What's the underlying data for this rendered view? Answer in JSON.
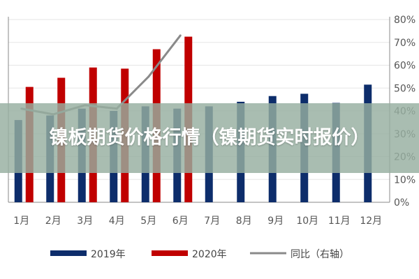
{
  "overlay_title": "镍板期货价格行情（镍期货实时报价）",
  "colors": {
    "series_2019": "#0d2d6b",
    "series_2020": "#c00000",
    "series_yoy": "#8a8a8a",
    "banner": "#96af a0"
  },
  "chart_data": {
    "type": "bar",
    "categories": [
      "1月",
      "2月",
      "3月",
      "4月",
      "5月",
      "6月",
      "7月",
      "8月",
      "9月",
      "10月",
      "11月",
      "12月"
    ],
    "series": [
      {
        "name": "2019年",
        "type": "bar",
        "color": "#0d2d6b",
        "values": [
          36,
          38,
          41,
          40,
          42,
          41,
          42,
          44,
          46.5,
          47.5,
          43.5,
          51.5
        ]
      },
      {
        "name": "2020年",
        "type": "bar",
        "color": "#c00000",
        "values": [
          50.5,
          54.5,
          59,
          58.5,
          67,
          72.5,
          null,
          null,
          null,
          null,
          null,
          null
        ]
      },
      {
        "name": "同比（右轴）",
        "type": "line",
        "axis": "right",
        "color": "#8a8a8a",
        "values": [
          41,
          38.5,
          42.5,
          41,
          55,
          73,
          null,
          null,
          null,
          null,
          null,
          null
        ]
      }
    ],
    "right_axis": {
      "ticks": [
        "0%",
        "10%",
        "20%",
        "30%",
        "40%",
        "50%",
        "60%",
        "70%",
        "80%"
      ],
      "ylim": [
        0,
        80
      ]
    },
    "left_axis": {
      "ylim": [
        0,
        80
      ]
    },
    "legend": "bottom"
  }
}
